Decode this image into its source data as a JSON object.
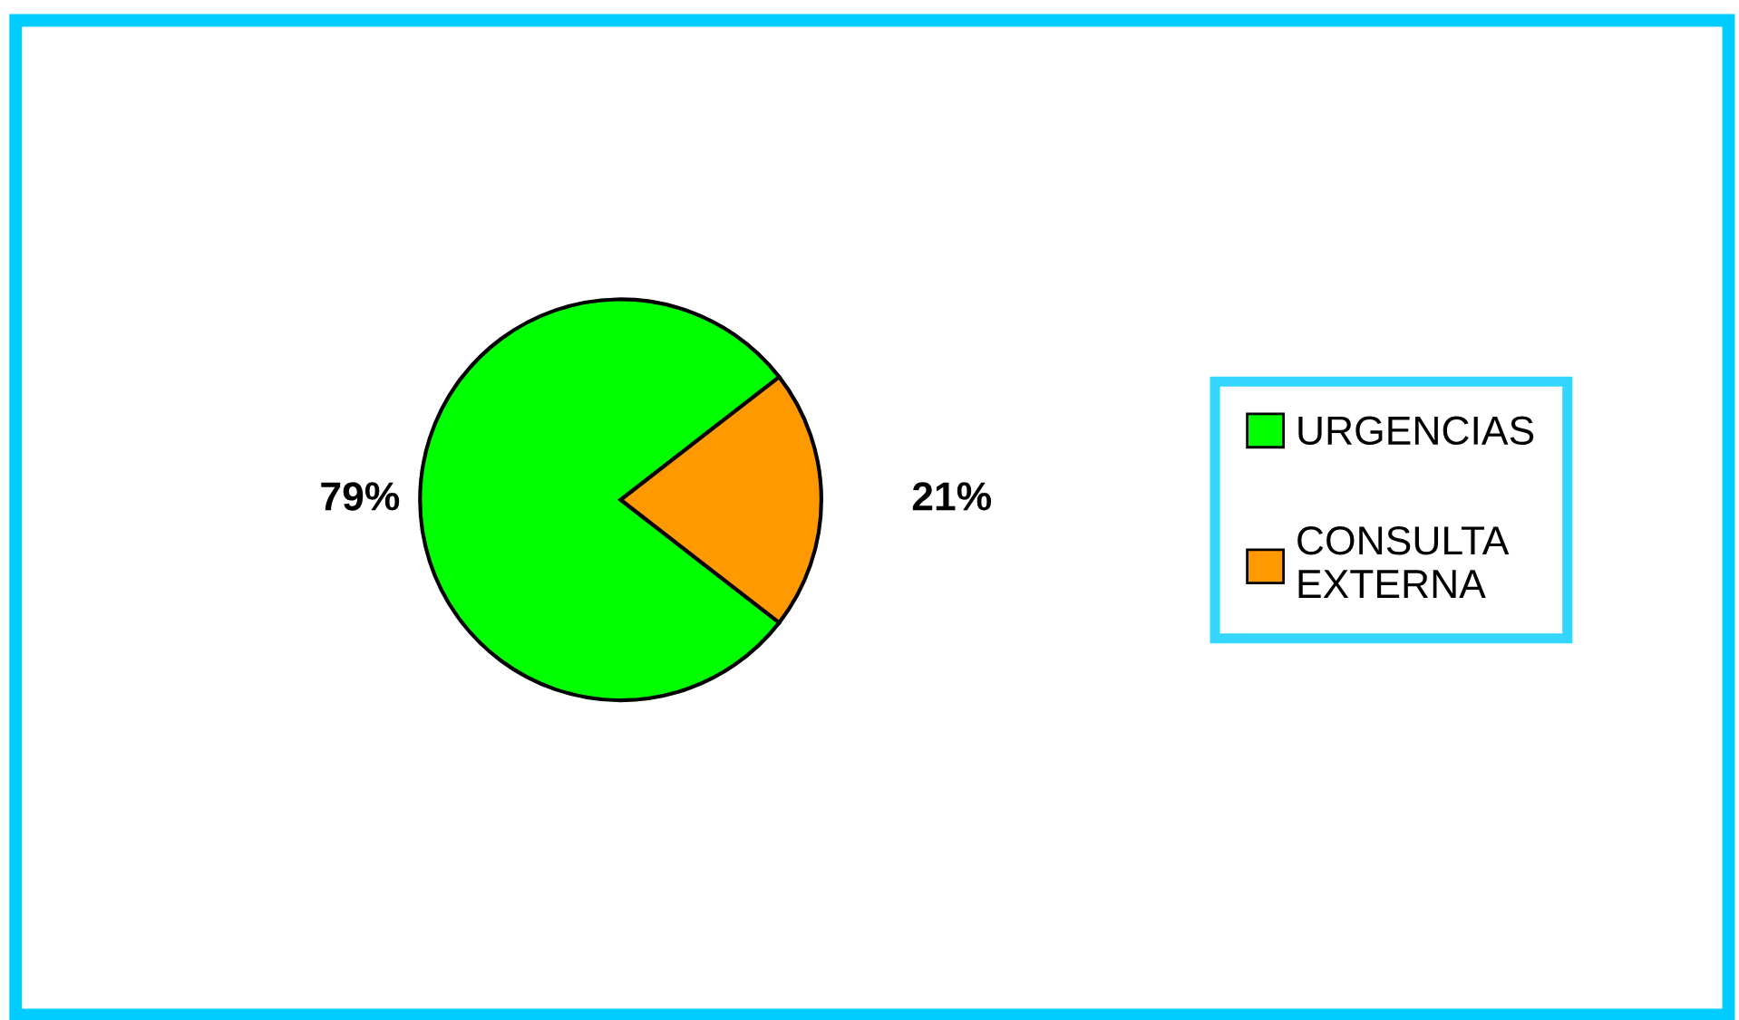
{
  "chart_data": {
    "type": "pie",
    "categories": [
      "URGENCIAS",
      "CONSULTA\nEXTERNA"
    ],
    "values": [
      79,
      21
    ],
    "colors": [
      "#00ff00",
      "#ff9900"
    ],
    "value_labels": [
      "79%",
      "21%"
    ],
    "legend": "right"
  }
}
